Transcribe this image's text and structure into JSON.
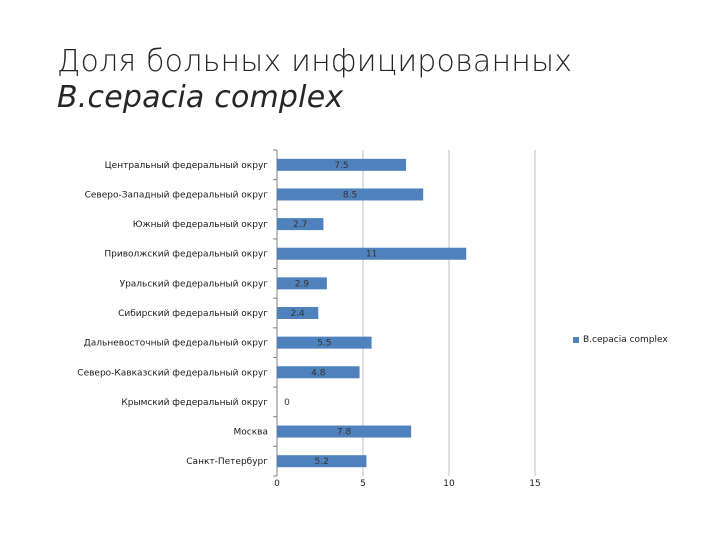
{
  "title": {
    "text_plain": "Доля больных инфицированных ",
    "text_italic": "B.cepacia complex"
  },
  "colors": {
    "bar": "#4f81bd",
    "grid": "#bfbfbf",
    "axis": "#808080"
  },
  "chart_data": {
    "type": "bar",
    "orientation": "horizontal",
    "categories": [
      "Центральный федеральный округ",
      "Северо-Западный федеральный округ",
      "Южный федеральный округ",
      "Приволжский федеральный округ",
      "Уральский федеральный округ",
      "Сибирский федеральный округ",
      "Дальневосточный федеральный округ",
      "Северо-Кавказский федеральный округ",
      "Крымский федеральный округ",
      "Москва",
      "Санкт-Петербург"
    ],
    "series": [
      {
        "name": "B.cepacia complex",
        "values": [
          7.5,
          8.5,
          2.7,
          11,
          2.9,
          2.4,
          5.5,
          4.8,
          0,
          7.8,
          5.2
        ],
        "labels": [
          "7.5",
          "8.5",
          "2.7",
          "11",
          "2.9",
          "2.4",
          "5.5",
          "4.8",
          "0",
          "7.8",
          "5.2"
        ]
      }
    ],
    "xlim": [
      0,
      15
    ],
    "xticks": [
      0,
      5,
      10,
      15
    ],
    "xtick_labels": [
      "0",
      "5",
      "10",
      "15"
    ],
    "grid": true,
    "legend_position": "right"
  },
  "legend": {
    "label": "B.cepacia complex"
  }
}
